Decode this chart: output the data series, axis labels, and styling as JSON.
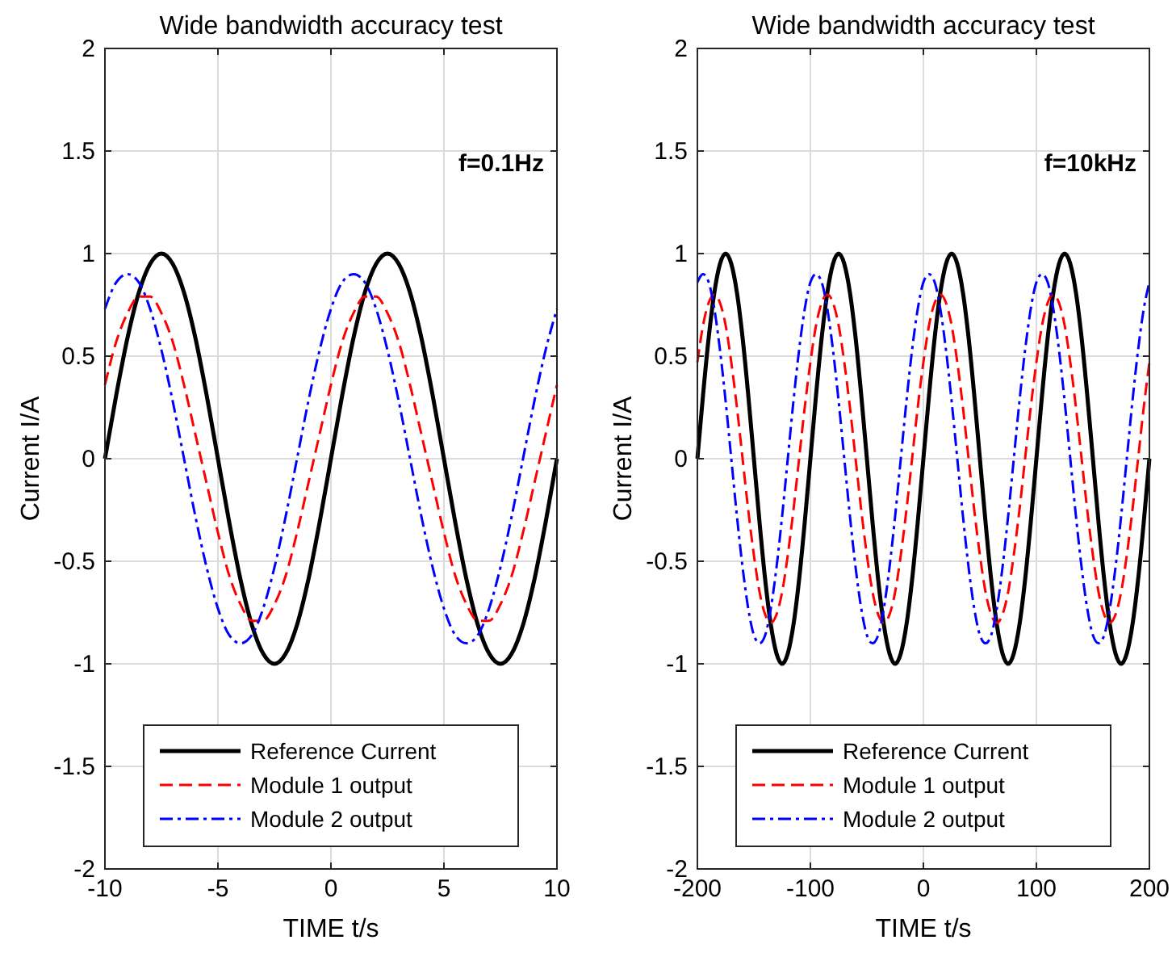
{
  "chart_data": [
    {
      "type": "line",
      "title": "Wide bandwidth accuracy test",
      "xlabel": "TIME t/s",
      "ylabel": "Current I/A",
      "annotations": [
        "f=0.1Hz"
      ],
      "grid": true,
      "legend": "bottom",
      "xlim": [
        -10,
        10
      ],
      "xticks": [
        -10,
        -5,
        0,
        5,
        10
      ],
      "ylim": [
        -2,
        2
      ],
      "yticks": [
        -2,
        -1.5,
        -1,
        -0.5,
        0,
        0.5,
        1,
        1.5,
        2
      ],
      "x": [
        -10,
        -9.5,
        -9,
        -8.5,
        -8,
        -7.5,
        -7,
        -6.5,
        -6,
        -5.5,
        -5,
        -4.5,
        -4,
        -3.5,
        -3,
        -2.5,
        -2,
        -1.5,
        -1,
        -0.5,
        0,
        0.5,
        1,
        1.5,
        2,
        2.5,
        3,
        3.5,
        4,
        4.5,
        5,
        5.5,
        6,
        6.5,
        7,
        7.5,
        8,
        8.5,
        9,
        9.5,
        10
      ],
      "series": [
        {
          "name": "Reference Current",
          "color": "#000000",
          "line_style": "solid",
          "values": [
            0,
            0.31,
            0.59,
            0.81,
            0.95,
            1,
            0.95,
            0.81,
            0.59,
            0.31,
            0,
            -0.31,
            -0.59,
            -0.81,
            -0.95,
            -1,
            -0.95,
            -0.81,
            -0.59,
            -0.31,
            0,
            0.31,
            0.59,
            0.81,
            0.95,
            1,
            0.95,
            0.81,
            0.59,
            0.31,
            0,
            -0.31,
            -0.59,
            -0.81,
            -0.95,
            -1,
            -0.95,
            -0.81,
            -0.59,
            -0.31,
            0
          ]
        },
        {
          "name": "Module 1 output",
          "color": "#ff0000",
          "line_style": "dashed",
          "values": [
            0.36,
            0.57,
            0.71,
            0.79,
            0.79,
            0.71,
            0.57,
            0.36,
            0.12,
            -0.12,
            -0.36,
            -0.57,
            -0.71,
            -0.79,
            -0.79,
            -0.71,
            -0.57,
            -0.36,
            -0.12,
            0.12,
            0.36,
            0.57,
            0.71,
            0.79,
            0.79,
            0.71,
            0.57,
            0.36,
            0.12,
            -0.12,
            -0.36,
            -0.57,
            -0.71,
            -0.79,
            -0.79,
            -0.71,
            -0.57,
            -0.36,
            -0.12,
            0.12,
            0.36
          ]
        },
        {
          "name": "Module 2 output",
          "color": "#0000ff",
          "line_style": "dashdot",
          "values": [
            0.73,
            0.86,
            0.9,
            0.86,
            0.73,
            0.53,
            0.28,
            0,
            -0.28,
            -0.53,
            -0.73,
            -0.86,
            -0.9,
            -0.86,
            -0.73,
            -0.53,
            -0.28,
            0,
            0.28,
            0.53,
            0.73,
            0.86,
            0.9,
            0.86,
            0.73,
            0.53,
            0.28,
            0,
            -0.28,
            -0.53,
            -0.73,
            -0.86,
            -0.9,
            -0.86,
            -0.73,
            -0.53,
            -0.28,
            0,
            0.28,
            0.53,
            0.73
          ]
        }
      ]
    },
    {
      "type": "line",
      "title": "Wide bandwidth accuracy test",
      "xlabel": "TIME t/s",
      "ylabel": "Current I/A",
      "annotations": [
        "f=10kHz"
      ],
      "grid": true,
      "legend": "bottom",
      "xlim": [
        -200,
        200
      ],
      "xticks": [
        -200,
        -100,
        0,
        100,
        200
      ],
      "ylim": [
        -2,
        2
      ],
      "yticks": [
        -2,
        -1.5,
        -1,
        -0.5,
        0,
        0.5,
        1,
        1.5,
        2
      ],
      "x": [
        -200,
        -195,
        -190,
        -185,
        -180,
        -175,
        -170,
        -165,
        -160,
        -155,
        -150,
        -145,
        -140,
        -135,
        -130,
        -125,
        -120,
        -115,
        -110,
        -105,
        -100,
        -95,
        -90,
        -85,
        -80,
        -75,
        -70,
        -65,
        -60,
        -55,
        -50,
        -45,
        -40,
        -35,
        -30,
        -25,
        -20,
        -15,
        -10,
        -5,
        0,
        5,
        10,
        15,
        20,
        25,
        30,
        35,
        40,
        45,
        50,
        55,
        60,
        65,
        70,
        75,
        80,
        85,
        90,
        95,
        100,
        105,
        110,
        115,
        120,
        125,
        130,
        135,
        140,
        145,
        150,
        155,
        160,
        165,
        170,
        175,
        180,
        185,
        190,
        195,
        200
      ],
      "series": [
        {
          "name": "Reference Current",
          "color": "#000000",
          "line_style": "solid",
          "values": [
            0,
            0.31,
            0.59,
            0.81,
            0.95,
            1,
            0.95,
            0.81,
            0.59,
            0.31,
            0,
            -0.31,
            -0.59,
            -0.81,
            -0.95,
            -1,
            -0.95,
            -0.81,
            -0.59,
            -0.31,
            0,
            0.31,
            0.59,
            0.81,
            0.95,
            1,
            0.95,
            0.81,
            0.59,
            0.31,
            0,
            -0.31,
            -0.59,
            -0.81,
            -0.95,
            -1,
            -0.95,
            -0.81,
            -0.59,
            -0.31,
            0,
            0.31,
            0.59,
            0.81,
            0.95,
            1,
            0.95,
            0.81,
            0.59,
            0.31,
            0,
            -0.31,
            -0.59,
            -0.81,
            -0.95,
            -1,
            -0.95,
            -0.81,
            -0.59,
            -0.31,
            0,
            0.31,
            0.59,
            0.81,
            0.95,
            1,
            0.95,
            0.81,
            0.59,
            0.31,
            0,
            -0.31,
            -0.59,
            -0.81,
            -0.95,
            -1,
            -0.95,
            -0.81,
            -0.59,
            -0.31,
            0
          ]
        },
        {
          "name": "Module 1 output",
          "color": "#ff0000",
          "line_style": "dashed",
          "values": [
            0.47,
            0.65,
            0.76,
            0.8,
            0.76,
            0.65,
            0.47,
            0.25,
            0,
            -0.25,
            -0.47,
            -0.65,
            -0.76,
            -0.8,
            -0.76,
            -0.65,
            -0.47,
            -0.25,
            0,
            0.25,
            0.47,
            0.65,
            0.76,
            0.8,
            0.76,
            0.65,
            0.47,
            0.25,
            0,
            -0.25,
            -0.47,
            -0.65,
            -0.76,
            -0.8,
            -0.76,
            -0.65,
            -0.47,
            -0.25,
            0,
            0.25,
            0.47,
            0.65,
            0.76,
            0.8,
            0.76,
            0.65,
            0.47,
            0.25,
            0,
            -0.25,
            -0.47,
            -0.65,
            -0.76,
            -0.8,
            -0.76,
            -0.65,
            -0.47,
            -0.25,
            0,
            0.25,
            0.47,
            0.65,
            0.76,
            0.8,
            0.76,
            0.65,
            0.47,
            0.25,
            0,
            -0.25,
            -0.47,
            -0.65,
            -0.76,
            -0.8,
            -0.76,
            -0.65,
            -0.47,
            -0.25,
            0,
            0.25,
            0.47
          ]
        },
        {
          "name": "Module 2 output",
          "color": "#0000ff",
          "line_style": "dashdot",
          "values": [
            0.86,
            0.9,
            0.86,
            0.73,
            0.53,
            0.28,
            0,
            -0.28,
            -0.53,
            -0.73,
            -0.86,
            -0.9,
            -0.86,
            -0.73,
            -0.53,
            -0.28,
            0,
            0.28,
            0.53,
            0.73,
            0.86,
            0.9,
            0.86,
            0.73,
            0.53,
            0.28,
            0,
            -0.28,
            -0.53,
            -0.73,
            -0.86,
            -0.9,
            -0.86,
            -0.73,
            -0.53,
            -0.28,
            0,
            0.28,
            0.53,
            0.73,
            0.86,
            0.9,
            0.86,
            0.73,
            0.53,
            0.28,
            0,
            -0.28,
            -0.53,
            -0.73,
            -0.86,
            -0.9,
            -0.86,
            -0.73,
            -0.53,
            -0.28,
            0,
            0.28,
            0.53,
            0.73,
            0.86,
            0.9,
            0.86,
            0.73,
            0.53,
            0.28,
            0,
            -0.28,
            -0.53,
            -0.73,
            -0.86,
            -0.9,
            -0.86,
            -0.73,
            -0.53,
            -0.28,
            0,
            0.28,
            0.53,
            0.73,
            0.86
          ]
        }
      ]
    }
  ]
}
